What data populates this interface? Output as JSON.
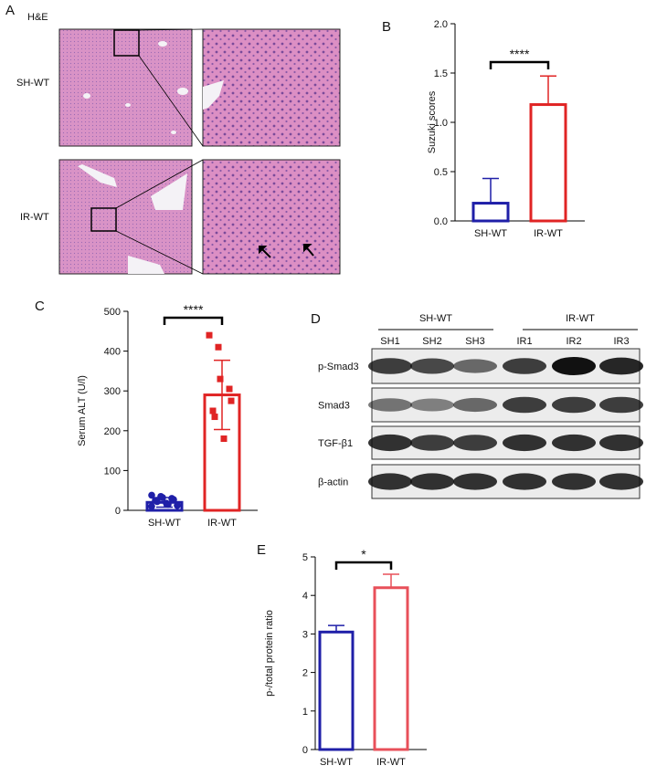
{
  "panel_a": {
    "letter": "A",
    "stain": "H&E",
    "rows": [
      "SH-WT",
      "IR-WT"
    ]
  },
  "panel_d": {
    "letter": "D",
    "groups": [
      "SH-WT",
      "IR-WT"
    ],
    "lanes": [
      "SH1",
      "SH2",
      "SH3",
      "IR1",
      "IR2",
      "IR3"
    ],
    "proteins": [
      "p-Smad3",
      "Smad3",
      "TGF-β1",
      "β-actin"
    ]
  },
  "chart_data": [
    {
      "type": "bar",
      "letter": "B",
      "ylabel": "Suzuki scores",
      "categories": [
        "SH-WT",
        "IR-WT"
      ],
      "values": [
        0.18,
        1.18
      ],
      "errors": [
        0.25,
        0.29
      ],
      "error_bars": "upper",
      "colors": [
        "#1f1fa8",
        "#e02424"
      ],
      "significance": "****",
      "ylim": [
        0,
        2
      ],
      "yticks": [
        {
          "value": 0,
          "label": "0.0"
        },
        0.5,
        {
          "value": 1,
          "label": "1.0"
        },
        1.5,
        {
          "value": 2,
          "label": "2.0"
        }
      ]
    },
    {
      "type": "bar",
      "letter": "C",
      "ylabel": "Serum ALT (U/l)",
      "categories": [
        "SH-WT",
        "IR-WT"
      ],
      "values": [
        20,
        290
      ],
      "errors": [
        12,
        87
      ],
      "error_bars": "both",
      "colors": [
        "#1f1fa8",
        "#e02424"
      ],
      "significance": "****",
      "ylim": [
        0,
        500
      ],
      "yticks": [
        0,
        100,
        200,
        300,
        400,
        500
      ],
      "points": [
        [
          38,
          35,
          32,
          30,
          27,
          25,
          22,
          18,
          15,
          12,
          10
        ],
        [
          440,
          410,
          330,
          305,
          275,
          250,
          235,
          180
        ]
      ],
      "point_markers": [
        "circle",
        "square"
      ]
    },
    {
      "type": "bar",
      "letter": "E",
      "ylabel": "p-/total protein ratio",
      "categories": [
        "SH-WT",
        "IR-WT"
      ],
      "values": [
        3.05,
        4.2
      ],
      "errors": [
        0.17,
        0.35
      ],
      "error_bars": "upper",
      "colors": [
        "#1f1fa8",
        "#e8505a"
      ],
      "significance": "*",
      "ylim": [
        0,
        5
      ],
      "yticks": [
        0,
        1,
        2,
        3,
        4,
        5
      ]
    }
  ]
}
